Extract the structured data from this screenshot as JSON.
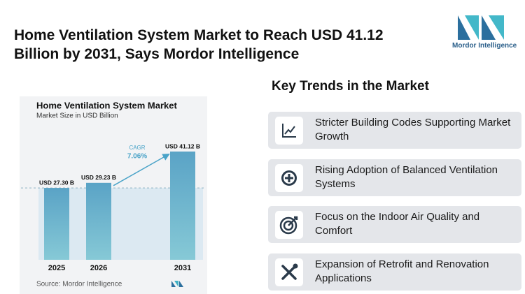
{
  "header": {
    "title": "Home Ventilation System Market to Reach USD 41.12 Billion by 2031, Says Mordor Intelligence",
    "logo": "Mordor Intelligence"
  },
  "chart_data": {
    "type": "bar",
    "title": "Home Ventilation System Market",
    "subtitle": "Market Size in USD Billion",
    "categories": [
      "2025",
      "2026",
      "2031"
    ],
    "values": [
      27.3,
      29.23,
      41.12
    ],
    "value_labels": [
      "USD 27.30 B",
      "USD 29.23 B",
      "USD 41.12 B"
    ],
    "color": "#5ea9c9",
    "annotations": [
      "CAGR",
      "7.06%"
    ],
    "source": "Source: Mordor Intelligence"
  },
  "trends": {
    "title": "Key Trends in the Market",
    "items": [
      "Stricter Building Codes Supporting Market Growth",
      "Rising Adoption of Balanced Ventilation Systems",
      "Focus on the Indoor Air Quality and Comfort",
      "Expansion of Retrofit and Renovation Applications"
    ]
  }
}
